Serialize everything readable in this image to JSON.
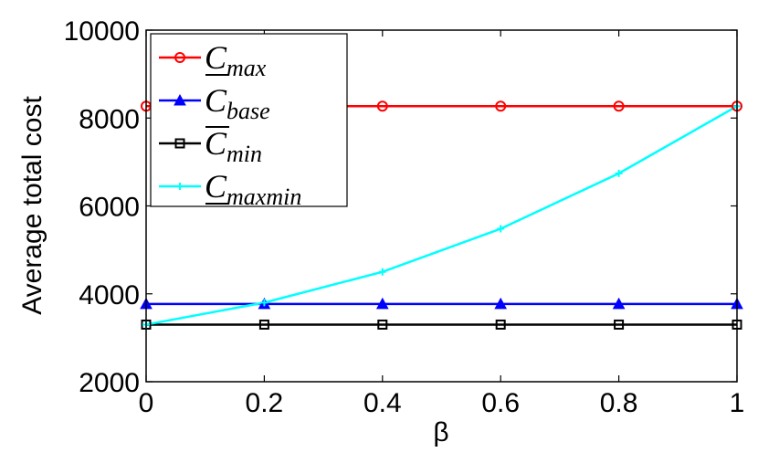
{
  "chart_data": {
    "type": "line",
    "xlabel": "β",
    "ylabel": "Average total cost",
    "xlim": [
      0,
      1
    ],
    "ylim": [
      2000,
      10000
    ],
    "x_ticks": [
      "0",
      "0.2",
      "0.4",
      "0.6",
      "0.8",
      "1"
    ],
    "y_ticks": [
      "2000",
      "4000",
      "6000",
      "8000",
      "10000"
    ],
    "grid": false,
    "legend_position": "top-left",
    "x": [
      0,
      0.2,
      0.4,
      0.6,
      0.8,
      1
    ],
    "series": [
      {
        "name": "C_max",
        "legend_base": "C",
        "legend_sub": "max",
        "legend_bar": "under",
        "color": "#ff0000",
        "marker": "circle",
        "values": [
          8270,
          8270,
          8270,
          8270,
          8270,
          8270
        ]
      },
      {
        "name": "C_base",
        "legend_base": "C",
        "legend_sub": "base",
        "legend_bar": "none",
        "color": "#0000ff",
        "marker": "triangle",
        "values": [
          3770,
          3770,
          3770,
          3770,
          3770,
          3770
        ]
      },
      {
        "name": "C_min",
        "legend_base": "C",
        "legend_sub": "min",
        "legend_bar": "over",
        "color": "#000000",
        "marker": "square",
        "values": [
          3300,
          3300,
          3300,
          3300,
          3300,
          3300
        ]
      },
      {
        "name": "C_maxmin",
        "legend_base": "C",
        "legend_sub": "maxmin",
        "legend_bar": "under",
        "color": "#00ffff",
        "marker": "plus",
        "values": [
          3300,
          3800,
          4500,
          5480,
          6740,
          8270
        ]
      }
    ]
  }
}
